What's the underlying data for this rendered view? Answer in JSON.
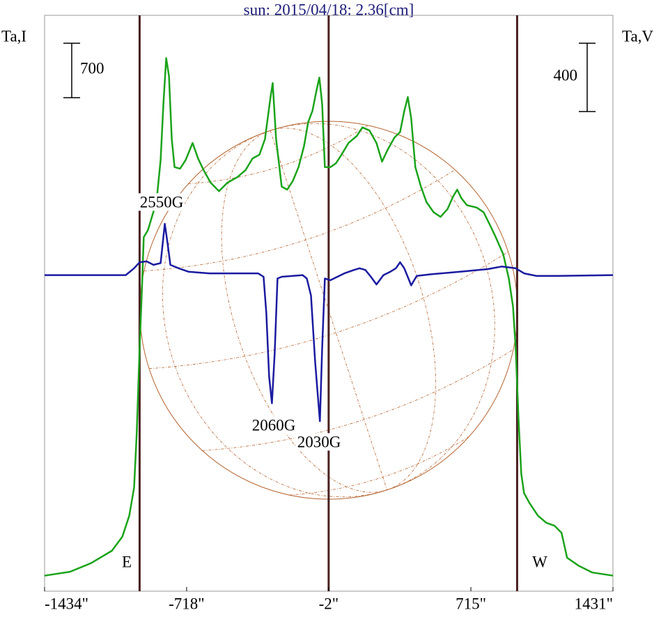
{
  "chart_data": {
    "type": "line",
    "title": "sun: 2015/04/18: 2.36[cm]",
    "y_label": "Ta,I",
    "y2_label": "Ta,V",
    "xlim": [
      -1434,
      1431
    ],
    "xticks": [
      {
        "value": -1434,
        "label": "-1434\""
      },
      {
        "value": -718,
        "label": "-718\""
      },
      {
        "value": -2,
        "label": "-2\""
      },
      {
        "value": 715,
        "label": "715\""
      },
      {
        "value": 1431,
        "label": "1431\""
      }
    ],
    "ylim": [
      -200,
      7200
    ],
    "y2lim": [
      -1850,
      1520
    ],
    "scale_bars": [
      {
        "value": 700,
        "axis": "y"
      },
      {
        "value": 400,
        "axis": "y2"
      }
    ],
    "vlines": [
      -955,
      -2,
      948
    ],
    "limb_labels": [
      "E",
      "W"
    ],
    "annotations": [
      "2550G",
      "2060G",
      "2030G"
    ],
    "series": [
      {
        "name": "I",
        "color": "#1aa31a",
        "x": [
          -1434,
          -1306,
          -1200,
          -1095,
          -1042,
          -1007,
          -983,
          -969,
          -955,
          -944,
          -934,
          -913,
          -892,
          -870,
          -849,
          -835,
          -821,
          -807,
          -793,
          -779,
          -751,
          -723,
          -688,
          -660,
          -632,
          -597,
          -555,
          -512,
          -463,
          -421,
          -386,
          -351,
          -323,
          -295,
          -284,
          -267,
          -239,
          -211,
          -183,
          -154,
          -126,
          -105,
          -84,
          -63,
          -49,
          -35,
          -21,
          7,
          35,
          63,
          98,
          140,
          168,
          204,
          239,
          267,
          295,
          330,
          358,
          379,
          397,
          414,
          435,
          463,
          491,
          527,
          562,
          597,
          625,
          646,
          667,
          695,
          744,
          779,
          814,
          842,
          878,
          906,
          927,
          941,
          955,
          969,
          983,
          1011,
          1053,
          1095,
          1137,
          1172,
          1200,
          1257,
          1327,
          1431
        ],
        "values": [
          0,
          50,
          160,
          320,
          500,
          770,
          1130,
          1850,
          2920,
          3640,
          4350,
          4440,
          4620,
          4800,
          5340,
          6060,
          6650,
          6420,
          5610,
          5250,
          5230,
          5340,
          5560,
          5360,
          5210,
          5050,
          4940,
          5050,
          5120,
          5210,
          5360,
          5410,
          5610,
          6150,
          6330,
          5610,
          5000,
          4960,
          5070,
          5250,
          5520,
          5830,
          5970,
          6240,
          6400,
          6060,
          5250,
          5250,
          5300,
          5410,
          5560,
          5650,
          5760,
          5720,
          5560,
          5320,
          5470,
          5630,
          5700,
          5970,
          6150,
          5880,
          5250,
          5000,
          4800,
          4670,
          4610,
          4710,
          4870,
          4960,
          4850,
          4760,
          4730,
          4670,
          4490,
          4340,
          4130,
          3820,
          3460,
          2920,
          2020,
          1310,
          1060,
          930,
          770,
          680,
          640,
          550,
          230,
          130,
          40,
          0
        ]
      },
      {
        "name": "V",
        "color": "#1a1aa0",
        "axis": "y2",
        "x": [
          -1434,
          -1025,
          -983,
          -955,
          -920,
          -885,
          -849,
          -828,
          -814,
          -800,
          -758,
          -709,
          -604,
          -463,
          -358,
          -330,
          -316,
          -302,
          -288,
          -274,
          -260,
          -239,
          -183,
          -133,
          -112,
          -91,
          -70,
          -56,
          -46,
          -35,
          -21,
          7,
          42,
          77,
          126,
          154,
          183,
          211,
          239,
          274,
          309,
          337,
          358,
          379,
          400,
          414,
          442,
          519,
          660,
          800,
          870,
          941,
          983,
          1046,
          1151,
          1431
        ],
        "values": [
          0,
          0,
          40,
          75,
          80,
          60,
          70,
          300,
          185,
          60,
          40,
          20,
          10,
          10,
          10,
          -10,
          -225,
          -595,
          -750,
          -455,
          -20,
          -10,
          -5,
          0,
          -20,
          -120,
          -510,
          -715,
          -855,
          -430,
          -20,
          -30,
          -10,
          10,
          30,
          40,
          30,
          -10,
          -55,
          0,
          20,
          40,
          75,
          40,
          -20,
          -60,
          -5,
          5,
          20,
          35,
          50,
          40,
          10,
          -5,
          -5,
          0
        ]
      }
    ]
  }
}
